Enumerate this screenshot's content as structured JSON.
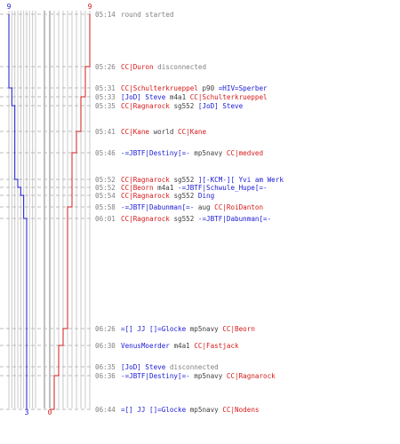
{
  "chart_data": {
    "type": "line",
    "max_value": 9,
    "final": {
      "blue": 3,
      "red": 0
    },
    "colors": {
      "blue": "#1a1ad6",
      "red": "#d61a1a",
      "grid": "#c8c8c8",
      "grid_dark": "#808080",
      "time": "#808080",
      "dash": "#bbbbbb",
      "neutral": "#404040"
    },
    "events": [
      {
        "time": "05:14",
        "parts": [
          {
            "t": "round started",
            "c": "time"
          }
        ],
        "blue": 9,
        "red": 9
      },
      {
        "time": "05:26",
        "parts": [
          {
            "t": "CC|Duron",
            "c": "red"
          },
          {
            "t": " disconnected",
            "c": "time"
          }
        ],
        "blue": 9,
        "red": 8
      },
      {
        "time": "05:31",
        "parts": [
          {
            "t": "CC|Schulterkrueppel",
            "c": "red"
          },
          {
            "t": " p90 ",
            "c": "neutral"
          },
          {
            "t": "=HIV=Sperber",
            "c": "blue"
          }
        ],
        "blue": 8,
        "red": 8
      },
      {
        "time": "05:33",
        "parts": [
          {
            "t": "[JoD] Steve",
            "c": "blue"
          },
          {
            "t": " m4a1 ",
            "c": "neutral"
          },
          {
            "t": "CC|Schulterkrueppel",
            "c": "red"
          }
        ],
        "blue": 8,
        "red": 7
      },
      {
        "time": "05:35",
        "parts": [
          {
            "t": "CC|Ragnarock",
            "c": "red"
          },
          {
            "t": " sg552 ",
            "c": "neutral"
          },
          {
            "t": "[JoD] Steve",
            "c": "blue"
          }
        ],
        "blue": 7,
        "red": 7
      },
      {
        "time": "05:41",
        "parts": [
          {
            "t": "CC|Kane",
            "c": "red"
          },
          {
            "t": " world ",
            "c": "neutral"
          },
          {
            "t": "CC|Kane",
            "c": "red"
          }
        ],
        "blue": 7,
        "red": 6
      },
      {
        "time": "05:46",
        "parts": [
          {
            "t": "-=JBTF|Destiny[=-",
            "c": "blue"
          },
          {
            "t": " mp5navy ",
            "c": "neutral"
          },
          {
            "t": "CC|medved",
            "c": "red"
          }
        ],
        "blue": 7,
        "red": 5
      },
      {
        "time": "05:52",
        "parts": [
          {
            "t": "CC|Ragnarock",
            "c": "red"
          },
          {
            "t": " sg552 ",
            "c": "neutral"
          },
          {
            "t": "][-KCM-][ Yvi am Werk",
            "c": "blue"
          }
        ],
        "blue": 6,
        "red": 5
      },
      {
        "time": "05:52",
        "parts": [
          {
            "t": "CC|Beorn",
            "c": "red"
          },
          {
            "t": " m4a1 ",
            "c": "neutral"
          },
          {
            "t": "-=JBTF|Schwule_Hupe[=-",
            "c": "blue"
          }
        ],
        "blue": 5,
        "red": 5
      },
      {
        "time": "05:54",
        "parts": [
          {
            "t": "CC|Ragnarock",
            "c": "red"
          },
          {
            "t": " sg552 ",
            "c": "neutral"
          },
          {
            "t": "Ding",
            "c": "blue"
          }
        ],
        "blue": 4,
        "red": 5
      },
      {
        "time": "05:58",
        "parts": [
          {
            "t": "-=JBTF|Dabunman[=-",
            "c": "blue"
          },
          {
            "t": " aug ",
            "c": "neutral"
          },
          {
            "t": "CC|RoiDanton",
            "c": "red"
          }
        ],
        "blue": 4,
        "red": 4
      },
      {
        "time": "06:01",
        "parts": [
          {
            "t": "CC|Ragnarock",
            "c": "red"
          },
          {
            "t": " sg552 ",
            "c": "neutral"
          },
          {
            "t": "-=JBTF|Dabunman[=-",
            "c": "blue"
          }
        ],
        "blue": 3,
        "red": 4
      },
      {
        "time": "06:26",
        "parts": [
          {
            "t": "=[] JJ []=Glocke",
            "c": "blue"
          },
          {
            "t": " mp5navy ",
            "c": "neutral"
          },
          {
            "t": "CC|Beorn",
            "c": "red"
          }
        ],
        "blue": 3,
        "red": 3
      },
      {
        "time": "06:30",
        "parts": [
          {
            "t": "VenusMoerder",
            "c": "blue"
          },
          {
            "t": " m4a1 ",
            "c": "neutral"
          },
          {
            "t": "CC|Fastjack",
            "c": "red"
          }
        ],
        "blue": 3,
        "red": 2
      },
      {
        "time": "06:35",
        "parts": [
          {
            "t": "[JoD] Steve",
            "c": "blue"
          },
          {
            "t": " disconnected",
            "c": "time"
          }
        ],
        "blue": 3,
        "red": 2
      },
      {
        "time": "06:36",
        "parts": [
          {
            "t": "-=JBTF|Destiny[=-",
            "c": "blue"
          },
          {
            "t": " mp5navy ",
            "c": "neutral"
          },
          {
            "t": "CC|Ragnarock",
            "c": "red"
          }
        ],
        "blue": 3,
        "red": 1
      },
      {
        "time": "06:44",
        "parts": [
          {
            "t": "=[] JJ []=Glocke",
            "c": "blue"
          },
          {
            "t": " mp5navy ",
            "c": "neutral"
          },
          {
            "t": "CC|Nodens",
            "c": "red"
          }
        ],
        "blue": 3,
        "red": 0
      }
    ]
  }
}
